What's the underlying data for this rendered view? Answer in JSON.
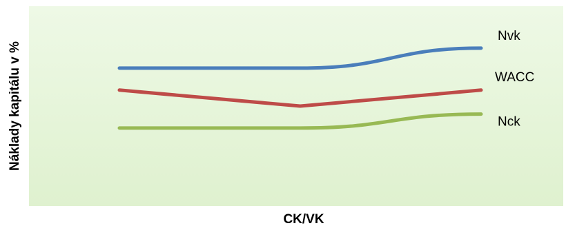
{
  "chart_data": {
    "type": "line",
    "title": "",
    "xlabel": "CK/VK",
    "ylabel": "Náklady kapitálu v %",
    "x": [
      0,
      1,
      2
    ],
    "ylim": [
      0,
      10
    ],
    "grid": false,
    "legend": "inline labels at line ends",
    "plot_background": [
      "#eef9e6",
      "#dff1cf"
    ],
    "series": [
      {
        "name": "Nvk",
        "color": "#4a7ebb",
        "values": [
          6.9,
          6.9,
          7.9
        ]
      },
      {
        "name": "WACC",
        "color": "#be4b48",
        "values": [
          5.8,
          5.0,
          5.8
        ]
      },
      {
        "name": "Nck",
        "color": "#98b954",
        "values": [
          3.9,
          3.9,
          4.6
        ]
      }
    ]
  }
}
